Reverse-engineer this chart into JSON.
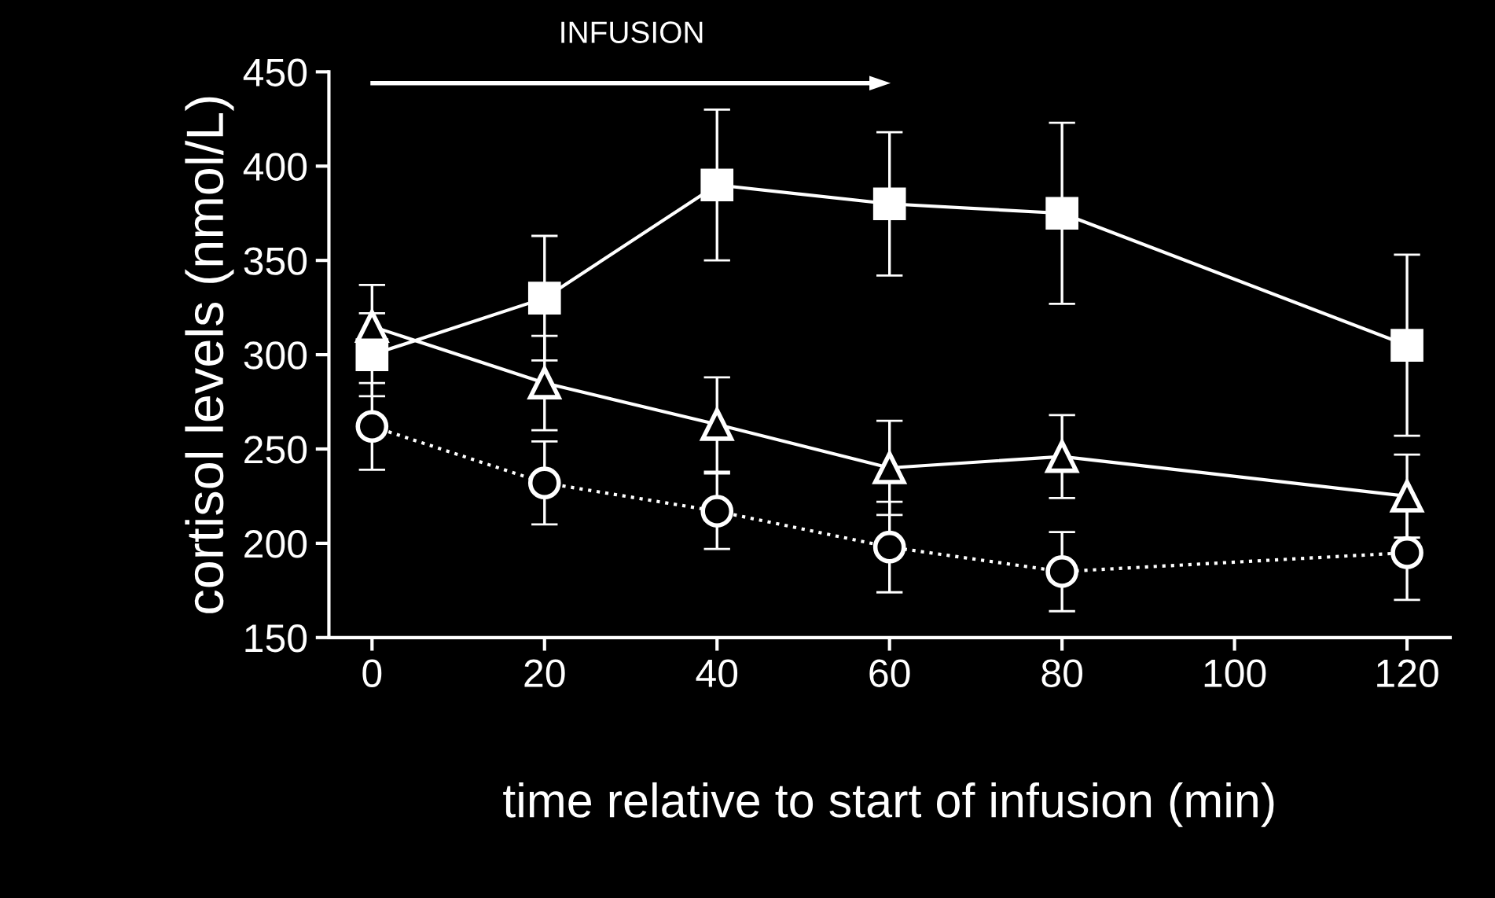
{
  "chart_data": {
    "type": "line",
    "xlabel": "time relative to start of infusion (min)",
    "ylabel": "cortisol levels (nmol/L)",
    "x": [
      0,
      20,
      40,
      60,
      80,
      120
    ],
    "series": [
      {
        "color": "#ffffff",
        "marker": "square",
        "line_style": "solid",
        "values": [
          300,
          330,
          390,
          380,
          375,
          305
        ],
        "errors": [
          22,
          33,
          40,
          38,
          48,
          48
        ]
      },
      {
        "color": "#ffffff",
        "marker": "triangle",
        "line_style": "solid",
        "values": [
          315,
          285,
          263,
          240,
          246,
          225
        ],
        "errors": [
          22,
          25,
          25,
          25,
          22,
          22
        ]
      },
      {
        "color": "#ffffff",
        "marker": "circle",
        "line_style": "dotted",
        "values": [
          262,
          232,
          217,
          198,
          185,
          195
        ],
        "errors": [
          23,
          22,
          20,
          24,
          21,
          25
        ]
      }
    ],
    "annotations": [
      "INFUSION"
    ],
    "xlim": [
      -5,
      125
    ],
    "ylim": [
      150,
      450
    ],
    "xticks": [
      0,
      20,
      40,
      60,
      80,
      100,
      120
    ],
    "yticks": [
      150,
      200,
      250,
      300,
      350,
      400,
      450
    ],
    "grid": false,
    "legend": false
  }
}
